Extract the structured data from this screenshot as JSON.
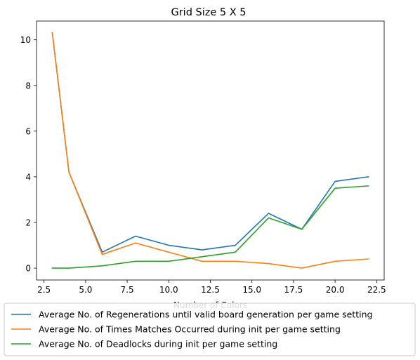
{
  "chart_data": {
    "type": "line",
    "title": "Grid Size 5 X 5",
    "xlabel": "Number of Colors",
    "ylabel": "",
    "xlim": [
      2.05,
      22.95
    ],
    "ylim": [
      -0.52,
      10.82
    ],
    "xticks": [
      2.5,
      5.0,
      7.5,
      10.0,
      12.5,
      15.0,
      17.5,
      20.0,
      22.5
    ],
    "xtick_labels": [
      "2.5",
      "5.0",
      "7.5",
      "10.0",
      "12.5",
      "15.0",
      "17.5",
      "20.0",
      "22.5"
    ],
    "yticks": [
      0,
      2,
      4,
      6,
      8,
      10
    ],
    "ytick_labels": [
      "0",
      "2",
      "4",
      "6",
      "8",
      "10"
    ],
    "grid": false,
    "legend_position": "bottom",
    "x": [
      3,
      4,
      6,
      8,
      10,
      12,
      14,
      16,
      18,
      20,
      22
    ],
    "series": [
      {
        "name": "Average No. of Regenerations until valid board generation per game setting",
        "color": "#1f77b4",
        "values": [
          10.3,
          4.2,
          0.7,
          1.4,
          1.0,
          0.8,
          1.0,
          2.4,
          1.7,
          3.8,
          4.0
        ]
      },
      {
        "name": "Average No. of Times Matches Occurred during init per game setting",
        "color": "#ff7f0e",
        "values": [
          10.3,
          4.2,
          0.6,
          1.1,
          0.7,
          0.3,
          0.3,
          0.2,
          0.0,
          0.3,
          0.4
        ]
      },
      {
        "name": "Average No. of Deadlocks during init per game setting",
        "color": "#2ca02c",
        "values": [
          0.0,
          0.0,
          0.1,
          0.3,
          0.3,
          0.5,
          0.7,
          2.2,
          1.7,
          3.5,
          3.6
        ]
      }
    ]
  }
}
